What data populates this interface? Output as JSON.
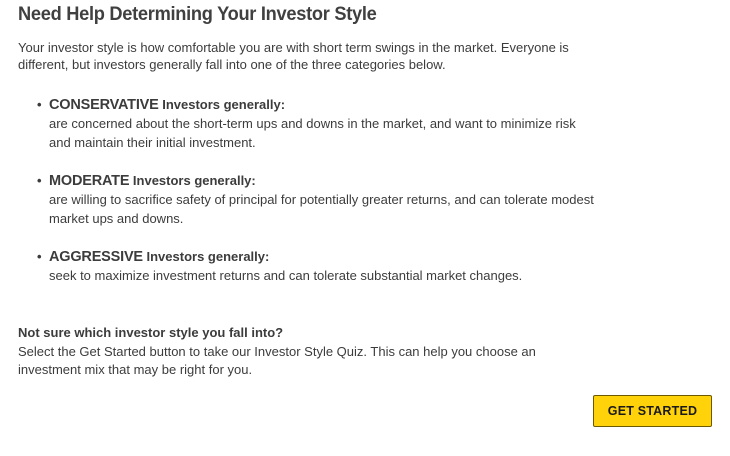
{
  "page": {
    "title": "Need Help Determining Your Investor Style",
    "intro": "Your investor style is how comfortable you are with short term swings in the market. Everyone is different, but investors generally fall into one of the three categories below."
  },
  "styles": [
    {
      "bullet": "•",
      "name": "CONSERVATIVE",
      "suffix": " Investors generally:",
      "description": "are concerned about the short-term ups and downs in the market, and want to minimize risk and maintain their initial investment."
    },
    {
      "bullet": "•",
      "name": "MODERATE",
      "suffix": " Investors generally:",
      "description": "are willing to sacrifice safety of principal for potentially greater returns, and can tolerate modest market ups and downs."
    },
    {
      "bullet": "•",
      "name": "AGGRESSIVE",
      "suffix": " Investors generally:",
      "description": "seek to maximize investment returns and can tolerate substantial market changes."
    }
  ],
  "quiz": {
    "question": "Not sure which investor style you fall into?",
    "text": "Select the Get Started button to take our Investor Style Quiz. This can help you choose an investment mix that may be right for you.",
    "button_label": "GET STARTED"
  },
  "colors": {
    "button_background": "#ffd20a",
    "text": "#3c3c3c"
  }
}
